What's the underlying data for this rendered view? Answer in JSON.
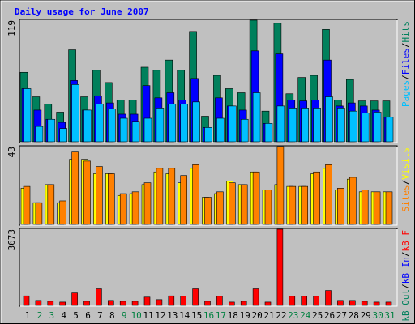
{
  "title": "Daily usage for June 2007",
  "chart_data": [
    {
      "type": "bar",
      "ylim": [
        0,
        119
      ],
      "yticks": [
        119
      ],
      "series": [
        {
          "name": "Hits",
          "color": "#00805c",
          "values": [
            68,
            44,
            37,
            29,
            90,
            44,
            70,
            58,
            41,
            41,
            73,
            70,
            80,
            70,
            108,
            25,
            65,
            52,
            48,
            119,
            30,
            116,
            47,
            63,
            65,
            110,
            41,
            61,
            40,
            40,
            40
          ]
        },
        {
          "name": "Files",
          "color": "#0000ff",
          "values": [
            52,
            31,
            22,
            19,
            60,
            31,
            45,
            38,
            27,
            27,
            55,
            43,
            48,
            41,
            62,
            14,
            43,
            35,
            31,
            89,
            18,
            86,
            41,
            40,
            41,
            80,
            35,
            38,
            35,
            31,
            24
          ]
        },
        {
          "name": "Pages",
          "color": "#00c0ff",
          "values": [
            52,
            15,
            22,
            13,
            56,
            31,
            37,
            32,
            23,
            20,
            23,
            33,
            37,
            37,
            39,
            14,
            23,
            35,
            22,
            48,
            18,
            35,
            33,
            33,
            33,
            44,
            33,
            30,
            28,
            29,
            24
          ]
        }
      ]
    },
    {
      "type": "bar",
      "ylim": [
        0,
        43
      ],
      "yticks": [
        43
      ],
      "series": [
        {
          "name": "Visits",
          "color": "#ffff00",
          "values": [
            20,
            12,
            22,
            12,
            36,
            36,
            28,
            28,
            16,
            17,
            22,
            29,
            28,
            23,
            31,
            15,
            17,
            24,
            22,
            29,
            19,
            22,
            21,
            21,
            28,
            31,
            19,
            25,
            18,
            18,
            18
          ]
        },
        {
          "name": "Sites",
          "color": "#ff8000",
          "values": [
            21,
            12,
            22,
            13,
            40,
            35,
            32,
            28,
            17,
            18,
            23,
            31,
            31,
            27,
            33,
            15,
            18,
            23,
            22,
            29,
            19,
            43,
            21,
            21,
            29,
            33,
            20,
            26,
            19,
            18,
            18
          ]
        }
      ]
    },
    {
      "type": "bar",
      "ylim": [
        0,
        3673
      ],
      "yticks": [
        3673
      ],
      "series": [
        {
          "name": "kB F",
          "color": "#ff0000",
          "values": [
            460,
            240,
            200,
            160,
            600,
            200,
            800,
            240,
            200,
            200,
            400,
            280,
            460,
            440,
            800,
            200,
            440,
            160,
            200,
            800,
            160,
            3673,
            440,
            440,
            440,
            720,
            240,
            240,
            200,
            160,
            160
          ]
        }
      ],
      "legend_only": [
        {
          "name": "kB In",
          "color": "#0000ff"
        },
        {
          "name": "kB Out",
          "color": "#00805c"
        }
      ],
      "categories": [
        "1",
        "2",
        "3",
        "4",
        "5",
        "6",
        "7",
        "8",
        "9",
        "10",
        "11",
        "12",
        "13",
        "14",
        "15",
        "16",
        "17",
        "18",
        "19",
        "20",
        "21",
        "22",
        "23",
        "24",
        "25",
        "26",
        "27",
        "28",
        "29",
        "30",
        "31"
      ],
      "category_colors": [
        "#000000",
        "#008040",
        "#008040",
        "#000000",
        "#000000",
        "#000000",
        "#000000",
        "#000000",
        "#008040",
        "#008040",
        "#000000",
        "#000000",
        "#000000",
        "#000000",
        "#000000",
        "#008040",
        "#008040",
        "#000000",
        "#000000",
        "#000000",
        "#000000",
        "#000000",
        "#008040",
        "#008040",
        "#000000",
        "#000000",
        "#000000",
        "#000000",
        "#000000",
        "#008040",
        "#008040"
      ]
    }
  ]
}
